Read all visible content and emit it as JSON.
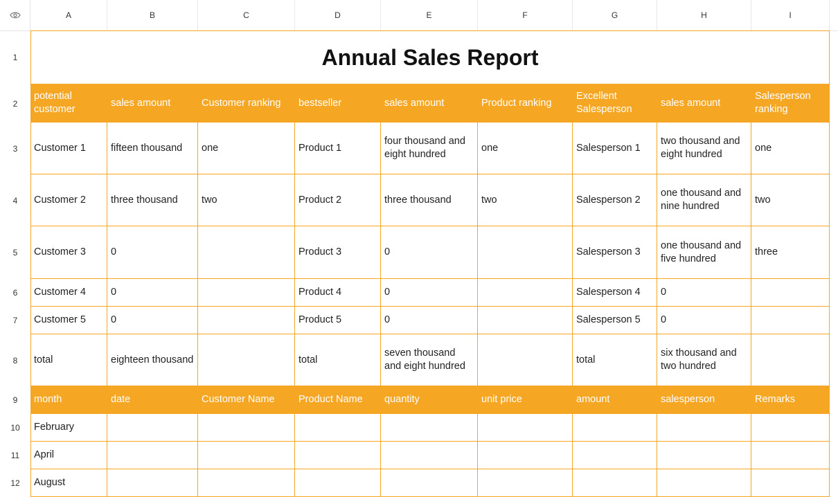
{
  "columns": [
    "A",
    "B",
    "C",
    "D",
    "E",
    "F",
    "G",
    "H",
    "I"
  ],
  "rows_numbers": [
    "1",
    "2",
    "3",
    "4",
    "5",
    "6",
    "7",
    "8",
    "9",
    "10",
    "11",
    "12"
  ],
  "title": "Annual Sales Report",
  "summary_headers": [
    "potential customer",
    "sales amount",
    "Customer ranking",
    "bestseller",
    "sales amount",
    "Product ranking",
    "Excellent Salesperson",
    "sales amount",
    "Salesperson ranking"
  ],
  "summary_rows": [
    [
      "Customer 1",
      "fifteen thousand",
      "one",
      "Product 1",
      "four thousand and eight hundred",
      "one",
      "Salesperson 1",
      "two thousand and eight hundred",
      "one"
    ],
    [
      "Customer 2",
      "three thousand",
      "two",
      "Product 2",
      "three thousand",
      "two",
      "Salesperson 2",
      "one thousand and nine hundred",
      "two"
    ],
    [
      "Customer 3",
      "0",
      "",
      "Product 3",
      "0",
      "",
      "Salesperson 3",
      "one thousand and five hundred",
      "three"
    ],
    [
      "Customer 4",
      "0",
      "",
      "Product 4",
      "0",
      "",
      "Salesperson 4",
      "0",
      ""
    ],
    [
      "Customer 5",
      "0",
      "",
      "Product 5",
      "0",
      "",
      "Salesperson 5",
      "0",
      ""
    ],
    [
      "total",
      "eighteen thousand",
      "",
      "total",
      "seven thousand and eight hundred",
      "",
      "total",
      "six thousand and two hundred",
      ""
    ]
  ],
  "detail_headers": [
    "month",
    "date",
    "Customer Name",
    "Product Name",
    "quantity",
    "unit price",
    "amount",
    "salesperson",
    "Remarks"
  ],
  "detail_rows": [
    [
      "February",
      "",
      "",
      "",
      "",
      "",
      "",
      "",
      ""
    ],
    [
      "April",
      "",
      "",
      "",
      "",
      "",
      "",
      "",
      ""
    ],
    [
      "August",
      "",
      "",
      "",
      "",
      "",
      "",
      "",
      ""
    ]
  ],
  "colors": {
    "accent": "#f5a623",
    "header_text": "#ffffff"
  }
}
